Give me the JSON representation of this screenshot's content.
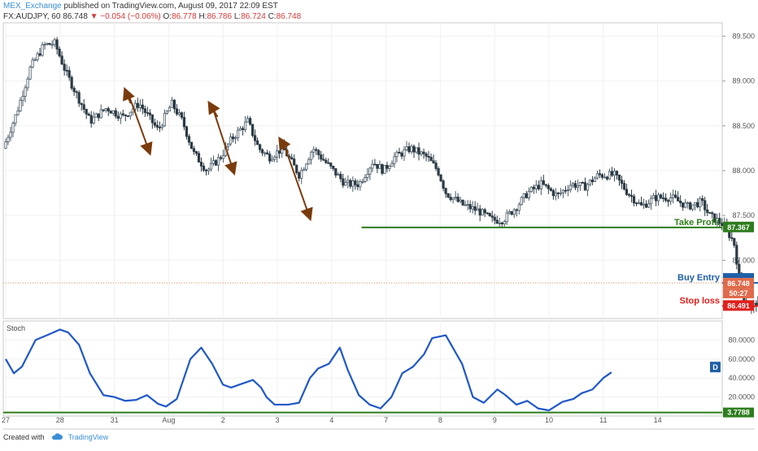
{
  "header": {
    "author": "MEX_Exchange",
    "published_text": "published on TradingView.com, August 09, 2017 22:09 EST",
    "symbol": "FX:AUDJPY, 60",
    "last": "86.748",
    "change_arrow": "▼",
    "change": "−0.054 (−0.06%)",
    "o_label": "O:",
    "o_value": "86.778",
    "h_label": "H:",
    "h_value": "86.786",
    "l_label": "L:",
    "l_value": "86.724",
    "c_label": "C:",
    "c_value": "86.748"
  },
  "footer": {
    "created_with": "Created with",
    "brand": "TradingView",
    "logo_icon": "tradingview-cloud-icon"
  },
  "colors": {
    "bull": "#4a5a66",
    "bear": "#2b3a44",
    "take_profit": "#2e7d1e",
    "buy_entry": "#1f5fa8",
    "stop_loss": "#e0201c",
    "stoch": "#1f58c8",
    "level_line": "#2e7d1e",
    "arrow_brown": "#7a3b0c",
    "axis_text": "#555555",
    "frame": "#c8c8c8"
  },
  "annotations": {
    "take_profit": {
      "label": "Take Profit",
      "price": "87.367"
    },
    "buy_entry": {
      "label": "Buy Entry",
      "price": "86.748"
    },
    "stop_loss": {
      "label": "Stop loss",
      "price": "86.491"
    },
    "countdown": "50:27",
    "stoch_level_badge": "3.7788",
    "d_badge": "D"
  },
  "chart_data": [
    {
      "type": "candlestick",
      "title": "FX:AUDJPY, 60",
      "x_ticks": [
        "27",
        "28",
        "31",
        "Aug",
        "2",
        "3",
        "4",
        "7",
        "8",
        "9",
        "10",
        "11",
        "14"
      ],
      "y_ticks": [
        "89.500",
        "89.000",
        "88.500",
        "88.000",
        "87.500",
        "87.000"
      ],
      "ylim": [
        86.35,
        89.65
      ],
      "grid": true,
      "price_path": [
        [
          0,
          88.25
        ],
        [
          0.25,
          88.65
        ],
        [
          0.5,
          89.15
        ],
        [
          0.75,
          89.4
        ],
        [
          0.95,
          89.42
        ],
        [
          1.15,
          89.1
        ],
        [
          1.35,
          88.85
        ],
        [
          1.6,
          88.55
        ],
        [
          1.9,
          88.7
        ],
        [
          2.2,
          88.6
        ],
        [
          2.5,
          88.75
        ],
        [
          2.85,
          88.45
        ],
        [
          3.1,
          88.75
        ],
        [
          3.3,
          88.55
        ],
        [
          3.5,
          88.2
        ],
        [
          3.75,
          88.0
        ],
        [
          4.0,
          88.15
        ],
        [
          4.2,
          88.35
        ],
        [
          4.5,
          88.55
        ],
        [
          4.7,
          88.25
        ],
        [
          4.9,
          88.15
        ],
        [
          5.15,
          88.25
        ],
        [
          5.45,
          87.95
        ],
        [
          5.7,
          88.25
        ],
        [
          6.0,
          88.05
        ],
        [
          6.3,
          87.85
        ],
        [
          6.55,
          87.85
        ],
        [
          6.8,
          88.1
        ],
        [
          7.0,
          88.0
        ],
        [
          7.2,
          88.15
        ],
        [
          7.5,
          88.25
        ],
        [
          7.8,
          88.15
        ],
        [
          8.0,
          88.0
        ],
        [
          8.15,
          87.75
        ],
        [
          8.45,
          87.62
        ],
        [
          8.75,
          87.55
        ],
        [
          9.0,
          87.45
        ],
        [
          9.2,
          87.45
        ],
        [
          9.45,
          87.6
        ],
        [
          9.65,
          87.75
        ],
        [
          9.9,
          87.85
        ],
        [
          10.2,
          87.72
        ],
        [
          10.45,
          87.85
        ],
        [
          10.7,
          87.82
        ],
        [
          10.95,
          87.95
        ],
        [
          11.25,
          87.95
        ],
        [
          11.5,
          87.75
        ],
        [
          11.75,
          87.6
        ],
        [
          12.0,
          87.7
        ],
        [
          12.3,
          87.7
        ],
        [
          12.6,
          87.6
        ],
        [
          12.85,
          87.65
        ],
        [
          13.0,
          87.5
        ],
        [
          13.25,
          87.4
        ],
        [
          13.45,
          87.2
        ],
        [
          13.6,
          86.6
        ],
        [
          13.75,
          86.45
        ],
        [
          13.9,
          86.55
        ],
        [
          14.05,
          86.65
        ],
        [
          14.25,
          86.62
        ],
        [
          14.45,
          86.7
        ],
        [
          14.6,
          86.78
        ],
        [
          14.75,
          86.9
        ],
        [
          14.95,
          86.75
        ]
      ],
      "levels": [
        {
          "name": "Take Profit",
          "value": 87.367,
          "x_from": 6.55
        },
        {
          "name": "Buy Entry",
          "value": 86.748,
          "x_from": 13.85
        },
        {
          "name": "Stop loss",
          "value": 86.491,
          "x_from": 14.45
        },
        {
          "name": "Last price",
          "value": 86.748,
          "style": "dotted"
        }
      ],
      "arrows": [
        {
          "from": [
            2.25,
            88.87
          ],
          "to": [
            2.65,
            88.2
          ],
          "color": "brown"
        },
        {
          "from": [
            3.8,
            88.72
          ],
          "to": [
            4.2,
            87.98
          ],
          "color": "brown"
        },
        {
          "from": [
            5.1,
            88.33
          ],
          "to": [
            5.6,
            87.47
          ],
          "color": "brown"
        },
        {
          "from": [
            2.3,
            88.75
          ],
          "to": [
            2.2,
            88.9
          ],
          "color": "brown"
        },
        {
          "from": [
            3.9,
            88.6
          ],
          "to": [
            3.75,
            88.75
          ],
          "color": "brown"
        },
        {
          "from": [
            5.2,
            88.2
          ],
          "to": [
            5.05,
            88.35
          ],
          "color": "brown"
        },
        {
          "from": [
            14.95,
            86.75
          ],
          "to": [
            15.35,
            87.35
          ],
          "color": "green"
        }
      ]
    },
    {
      "type": "line",
      "title": "Stoch",
      "y_ticks": [
        "80.0000",
        "60.0000",
        "40.0000",
        "20.0000"
      ],
      "ylim": [
        0,
        100
      ],
      "level": 3.7788,
      "series": [
        {
          "values": [
            [
              0,
              60
            ],
            [
              0.15,
              45
            ],
            [
              0.3,
              52
            ],
            [
              0.55,
              80
            ],
            [
              0.8,
              86
            ],
            [
              1.0,
              91
            ],
            [
              1.15,
              88
            ],
            [
              1.35,
              75
            ],
            [
              1.55,
              45
            ],
            [
              1.8,
              22
            ],
            [
              2.0,
              20
            ],
            [
              2.2,
              16
            ],
            [
              2.4,
              17
            ],
            [
              2.6,
              22
            ],
            [
              2.8,
              13
            ],
            [
              2.95,
              10
            ],
            [
              3.15,
              18
            ],
            [
              3.4,
              60
            ],
            [
              3.6,
              72
            ],
            [
              3.8,
              55
            ],
            [
              4.0,
              33
            ],
            [
              4.15,
              30
            ],
            [
              4.35,
              34
            ],
            [
              4.55,
              38
            ],
            [
              4.7,
              30
            ],
            [
              4.8,
              20
            ],
            [
              4.95,
              12
            ],
            [
              5.2,
              12
            ],
            [
              5.4,
              14
            ],
            [
              5.6,
              40
            ],
            [
              5.75,
              50
            ],
            [
              5.95,
              55
            ],
            [
              6.15,
              72
            ],
            [
              6.3,
              48
            ],
            [
              6.5,
              22
            ],
            [
              6.7,
              12
            ],
            [
              6.9,
              8
            ],
            [
              7.1,
              20
            ],
            [
              7.3,
              45
            ],
            [
              7.5,
              52
            ],
            [
              7.7,
              65
            ],
            [
              7.85,
              82
            ],
            [
              8.1,
              85
            ],
            [
              8.4,
              55
            ],
            [
              8.6,
              20
            ],
            [
              8.8,
              14
            ],
            [
              9.05,
              28
            ],
            [
              9.2,
              22
            ],
            [
              9.4,
              12
            ],
            [
              9.6,
              16
            ],
            [
              9.8,
              8
            ],
            [
              10.0,
              6
            ],
            [
              10.25,
              15
            ],
            [
              10.45,
              18
            ],
            [
              10.6,
              24
            ],
            [
              10.8,
              28
            ],
            [
              11.0,
              40
            ],
            [
              11.15,
              46
            ]
          ]
        }
      ]
    }
  ]
}
